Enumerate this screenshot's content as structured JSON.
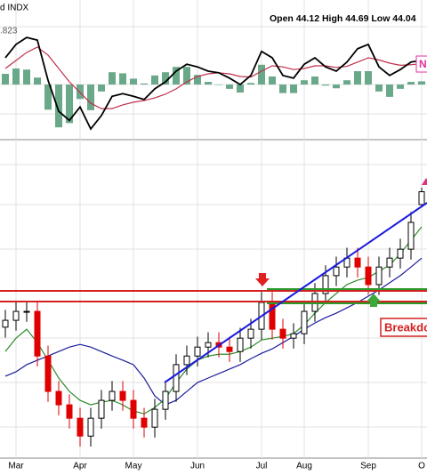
{
  "chart_data": {
    "type": "candlestick",
    "title": "d INDX",
    "ohlc_label": "Open 44.12  High 44.69  Low 44.04",
    "indicator_value_label": ".823",
    "indicator_tag": "N",
    "annotation": "Breakdo",
    "categories": [
      null,
      "Mar",
      null,
      null,
      null,
      null,
      null,
      "Apr",
      null,
      null,
      null,
      null,
      "May",
      null,
      null,
      null,
      null,
      null,
      "Jun",
      null,
      null,
      null,
      null,
      null,
      "Jul",
      null,
      null,
      null,
      "Aug",
      null,
      null,
      null,
      null,
      null,
      "Sep",
      null,
      null,
      null,
      null,
      "O"
    ],
    "open": [
      40.0,
      40.23,
      40.53,
      40.53,
      39.03,
      37.84,
      37.39,
      36.94,
      36.34,
      36.94,
      37.54,
      37.84,
      37.54,
      36.94,
      36.64,
      37.24,
      37.84,
      38.74,
      39.03,
      39.33,
      39.48,
      39.33,
      39.18,
      39.63,
      39.93,
      40.83,
      39.93,
      39.63,
      39.78,
      40.53,
      41.13,
      41.73,
      42.02,
      42.32,
      42.02,
      41.43,
      42.02,
      42.32,
      42.62,
      44.12
    ],
    "high": [
      40.58,
      40.88,
      40.88,
      40.88,
      39.38,
      38.19,
      37.74,
      37.29,
      37.29,
      37.89,
      38.19,
      38.19,
      37.89,
      37.29,
      37.59,
      38.19,
      39.09,
      39.38,
      39.68,
      39.83,
      39.83,
      39.68,
      39.98,
      40.28,
      41.18,
      41.18,
      40.28,
      40.13,
      40.88,
      41.48,
      42.08,
      42.37,
      42.67,
      42.67,
      42.37,
      42.37,
      42.67,
      42.97,
      43.87,
      44.69
    ],
    "low": [
      39.65,
      39.88,
      40.18,
      38.68,
      37.49,
      37.04,
      36.59,
      35.99,
      35.99,
      36.59,
      37.19,
      37.19,
      36.59,
      36.29,
      36.29,
      36.89,
      37.49,
      38.39,
      38.68,
      38.98,
      38.98,
      38.83,
      38.83,
      39.28,
      39.58,
      39.58,
      39.28,
      39.28,
      39.43,
      40.18,
      40.78,
      41.38,
      41.67,
      41.67,
      41.08,
      41.08,
      41.67,
      41.97,
      42.27,
      44.04
    ],
    "close": [
      40.23,
      40.53,
      40.53,
      39.03,
      37.84,
      37.39,
      36.94,
      36.34,
      36.94,
      37.54,
      37.84,
      37.54,
      36.94,
      36.64,
      37.24,
      37.84,
      38.74,
      39.03,
      39.33,
      39.48,
      39.33,
      39.18,
      39.63,
      39.93,
      40.83,
      39.93,
      39.63,
      39.78,
      40.53,
      41.13,
      41.73,
      42.02,
      42.32,
      42.02,
      41.43,
      42.02,
      42.32,
      42.62,
      43.52,
      44.55
    ],
    "up_color": "#000000",
    "down_color": "#e00000",
    "ylim": [
      35.6,
      46.3
    ],
    "overlays": [
      {
        "color": "#1c1c9c",
        "values": [
          38.35,
          38.5,
          38.74,
          38.89,
          39.03,
          39.18,
          39.33,
          39.42,
          39.33,
          39.18,
          39.03,
          38.89,
          38.74,
          38.29,
          37.69,
          37.39,
          37.54,
          37.84,
          38.14,
          38.29,
          38.44,
          38.59,
          38.74,
          38.94,
          39.12,
          39.27,
          39.48,
          39.69,
          39.93,
          40.14,
          40.32,
          40.47,
          40.65,
          40.83,
          41.04,
          41.25,
          41.49,
          41.73,
          42.02,
          42.32
        ]
      },
      {
        "color": "#2e8b2e",
        "values": [
          39.18,
          39.63,
          39.93,
          39.48,
          38.89,
          38.29,
          37.84,
          37.54,
          37.39,
          37.48,
          37.54,
          37.39,
          37.18,
          37.09,
          37.3,
          37.6,
          38.14,
          38.59,
          38.89,
          39.03,
          39.09,
          39.09,
          39.18,
          39.33,
          39.57,
          39.63,
          39.69,
          39.78,
          40.08,
          40.47,
          40.83,
          41.13,
          41.43,
          41.58,
          41.67,
          41.88,
          42.08,
          42.47,
          42.92,
          43.37
        ]
      }
    ],
    "macd": {
      "ylim": [
        -1.03,
        1.58
      ],
      "line_color": "#000000",
      "signal_color": "#c0304a",
      "histogram_color": "#6aa88a",
      "line": [
        0.5,
        0.75,
        0.88,
        0.83,
        0.08,
        -0.5,
        -0.67,
        -0.42,
        -0.83,
        -0.58,
        -0.22,
        -0.17,
        -0.22,
        -0.28,
        -0.08,
        0.05,
        0.25,
        0.38,
        0.33,
        0.25,
        0.22,
        0.12,
        0.0,
        0.17,
        0.62,
        0.5,
        0.17,
        0.12,
        0.38,
        0.5,
        0.33,
        0.25,
        0.42,
        0.67,
        0.75,
        0.33,
        0.17,
        0.28,
        0.42,
        0.45
      ],
      "signal": [
        0.3,
        0.45,
        0.6,
        0.7,
        0.55,
        0.3,
        0.05,
        -0.15,
        -0.35,
        -0.45,
        -0.45,
        -0.38,
        -0.33,
        -0.3,
        -0.25,
        -0.18,
        -0.08,
        0.05,
        0.15,
        0.2,
        0.22,
        0.2,
        0.15,
        0.14,
        0.25,
        0.35,
        0.33,
        0.28,
        0.3,
        0.35,
        0.35,
        0.32,
        0.34,
        0.42,
        0.5,
        0.46,
        0.4,
        0.36,
        0.37,
        0.39
      ],
      "histogram": [
        0.2,
        0.3,
        0.28,
        0.13,
        -0.47,
        -0.8,
        -0.72,
        -0.27,
        -0.48,
        -0.13,
        0.23,
        0.21,
        0.11,
        0.02,
        0.17,
        0.23,
        0.33,
        0.33,
        0.18,
        0.05,
        0.0,
        -0.08,
        -0.15,
        0.03,
        0.37,
        0.15,
        -0.16,
        -0.16,
        0.08,
        0.15,
        -0.02,
        -0.07,
        0.08,
        0.25,
        0.25,
        -0.13,
        -0.23,
        -0.08,
        0.05,
        0.06
      ]
    }
  }
}
